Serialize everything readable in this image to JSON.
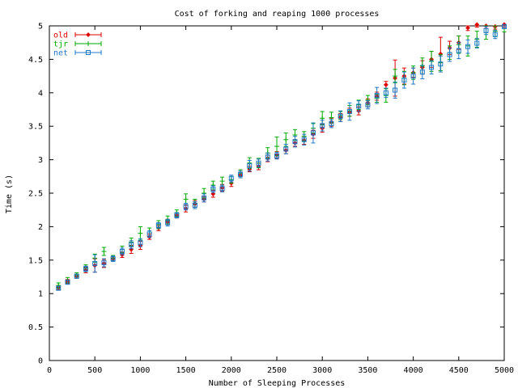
{
  "chart_data": {
    "type": "scatter",
    "title": "Cost of forking and reaping 1000 processes",
    "xlabel": "Number of Sleeping Processes",
    "ylabel": "Time (s)",
    "xlim": [
      0,
      5000
    ],
    "ylim": [
      0,
      5
    ],
    "xticks": [
      0,
      500,
      1000,
      1500,
      2000,
      2500,
      3000,
      3500,
      4000,
      4500,
      5000
    ],
    "yticks": [
      0,
      0.5,
      1,
      1.5,
      2,
      2.5,
      3,
      3.5,
      4,
      4.5,
      5
    ],
    "xtick_labels": [
      "0",
      "500",
      "1000",
      "1500",
      "2000",
      "2500",
      "3000",
      "3500",
      "4000",
      "4500",
      "5000"
    ],
    "ytick_labels": [
      "0",
      "0.5",
      "1",
      "1.5",
      "2",
      "2.5",
      "3",
      "3.5",
      "4",
      "4.5",
      "5"
    ],
    "grid": false,
    "legend_position": "top-left",
    "error_bars": true,
    "x": [
      100,
      200,
      300,
      400,
      500,
      600,
      700,
      800,
      900,
      1000,
      1100,
      1200,
      1300,
      1400,
      1500,
      1600,
      1700,
      1800,
      1900,
      2000,
      2100,
      2200,
      2300,
      2400,
      2500,
      2600,
      2700,
      2800,
      2900,
      3000,
      3100,
      3200,
      3300,
      3400,
      3500,
      3600,
      3700,
      3800,
      3900,
      4000,
      4100,
      4200,
      4300,
      4400,
      4500,
      4600,
      4700,
      4800,
      4900,
      5000
    ],
    "series": [
      {
        "name": "old",
        "color": "#dd0000",
        "marker": "diamond",
        "values": [
          1.09,
          1.18,
          1.26,
          1.35,
          1.42,
          1.45,
          1.52,
          1.58,
          1.66,
          1.72,
          1.85,
          1.98,
          2.07,
          2.17,
          2.27,
          2.34,
          2.41,
          2.49,
          2.58,
          2.65,
          2.77,
          2.86,
          2.9,
          3.02,
          3.07,
          3.14,
          3.25,
          3.29,
          3.38,
          3.47,
          3.56,
          3.63,
          3.71,
          3.73,
          3.85,
          3.95,
          4.12,
          4.22,
          4.25,
          4.3,
          4.38,
          4.5,
          4.58,
          4.67,
          4.75,
          4.97,
          5.02,
          5.0,
          4.99,
          5.02
        ],
        "errors": [
          0.03,
          0.03,
          0.03,
          0.04,
          0.1,
          0.06,
          0.03,
          0.04,
          0.06,
          0.06,
          0.04,
          0.04,
          0.04,
          0.04,
          0.05,
          0.05,
          0.04,
          0.05,
          0.05,
          0.05,
          0.04,
          0.04,
          0.05,
          0.05,
          0.05,
          0.05,
          0.05,
          0.06,
          0.06,
          0.06,
          0.06,
          0.06,
          0.06,
          0.06,
          0.06,
          0.06,
          0.05,
          0.27,
          0.12,
          0.07,
          0.1,
          0.12,
          0.25,
          0.1,
          0.1,
          0.04,
          0.04,
          0.04,
          0.04,
          0.04
        ]
      },
      {
        "name": "tjr",
        "color": "#00aa00",
        "marker": "plus",
        "values": [
          1.12,
          1.2,
          1.27,
          1.38,
          1.53,
          1.63,
          1.53,
          1.66,
          1.77,
          1.9,
          1.92,
          2.03,
          2.1,
          2.2,
          2.41,
          2.35,
          2.5,
          2.62,
          2.68,
          2.7,
          2.8,
          2.95,
          2.95,
          3.1,
          3.2,
          3.3,
          3.37,
          3.35,
          3.47,
          3.62,
          3.63,
          3.66,
          3.73,
          3.82,
          3.89,
          3.92,
          3.96,
          4.25,
          4.22,
          4.3,
          4.4,
          4.47,
          4.45,
          4.6,
          4.72,
          4.7,
          4.8,
          4.9,
          4.92,
          4.96
        ],
        "errors": [
          0.04,
          0.04,
          0.04,
          0.05,
          0.06,
          0.06,
          0.04,
          0.05,
          0.06,
          0.1,
          0.06,
          0.06,
          0.06,
          0.05,
          0.08,
          0.06,
          0.07,
          0.06,
          0.06,
          0.05,
          0.05,
          0.08,
          0.07,
          0.08,
          0.14,
          0.1,
          0.08,
          0.07,
          0.07,
          0.1,
          0.08,
          0.06,
          0.08,
          0.07,
          0.07,
          0.06,
          0.1,
          0.1,
          0.1,
          0.1,
          0.12,
          0.15,
          0.12,
          0.1,
          0.13,
          0.15,
          0.12,
          0.1,
          0.08,
          0.05
        ]
      },
      {
        "name": "net",
        "color": "#1f78c8",
        "marker": "square",
        "values": [
          1.08,
          1.17,
          1.26,
          1.37,
          1.45,
          1.46,
          1.52,
          1.63,
          1.73,
          1.76,
          1.89,
          2.02,
          2.06,
          2.17,
          2.3,
          2.32,
          2.43,
          2.56,
          2.57,
          2.72,
          2.78,
          2.91,
          2.95,
          3.04,
          3.06,
          3.16,
          3.27,
          3.3,
          3.4,
          3.51,
          3.54,
          3.65,
          3.72,
          3.8,
          3.82,
          3.96,
          4.0,
          4.04,
          4.19,
          4.25,
          4.31,
          4.38,
          4.43,
          4.57,
          4.63,
          4.69,
          4.74,
          4.93,
          4.87,
          4.99
        ],
        "errors": [
          0.03,
          0.03,
          0.03,
          0.04,
          0.13,
          0.06,
          0.04,
          0.05,
          0.06,
          0.06,
          0.05,
          0.04,
          0.05,
          0.04,
          0.05,
          0.05,
          0.06,
          0.05,
          0.05,
          0.05,
          0.05,
          0.08,
          0.06,
          0.06,
          0.05,
          0.07,
          0.08,
          0.08,
          0.15,
          0.08,
          0.06,
          0.08,
          0.13,
          0.08,
          0.06,
          0.12,
          0.07,
          0.12,
          0.12,
          0.12,
          0.1,
          0.1,
          0.12,
          0.1,
          0.12,
          0.1,
          0.07,
          0.06,
          0.06,
          0.03
        ]
      }
    ]
  }
}
